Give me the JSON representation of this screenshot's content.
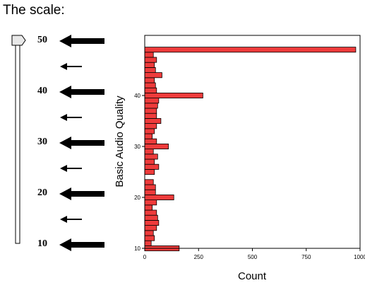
{
  "title": "The scale:",
  "scale": {
    "labels": [
      "50",
      "40",
      "30",
      "20",
      "10"
    ],
    "ticks_major": [
      50,
      40,
      30,
      20,
      10
    ],
    "ticks_minor": [
      45,
      35,
      25,
      15
    ],
    "slider_value": 50
  },
  "chart_data": {
    "type": "bar",
    "orientation": "horizontal",
    "title": "",
    "xlabel": "Count",
    "ylabel": "Basic Audio Quality",
    "xlim": [
      0,
      1000
    ],
    "ylim": [
      10,
      50
    ],
    "xticks": [
      "0",
      "250",
      "500",
      "750",
      "1000"
    ],
    "yticks": [
      "10",
      "20",
      "30",
      "40"
    ],
    "bar_color": "#ee3b3b",
    "bins": [
      10,
      11,
      12,
      13,
      14,
      15,
      16,
      17,
      18,
      19,
      20,
      21,
      22,
      23,
      25,
      26,
      27,
      28,
      29,
      30,
      31,
      32,
      33,
      34,
      35,
      36,
      37,
      38,
      39,
      40,
      41,
      42,
      43,
      44,
      45,
      46,
      47,
      48,
      49
    ],
    "values": [
      160,
      30,
      45,
      40,
      55,
      65,
      60,
      55,
      35,
      55,
      135,
      50,
      50,
      40,
      45,
      65,
      45,
      60,
      40,
      110,
      55,
      35,
      45,
      55,
      75,
      55,
      55,
      60,
      65,
      270,
      55,
      50,
      45,
      80,
      50,
      45,
      55,
      40,
      980
    ]
  }
}
